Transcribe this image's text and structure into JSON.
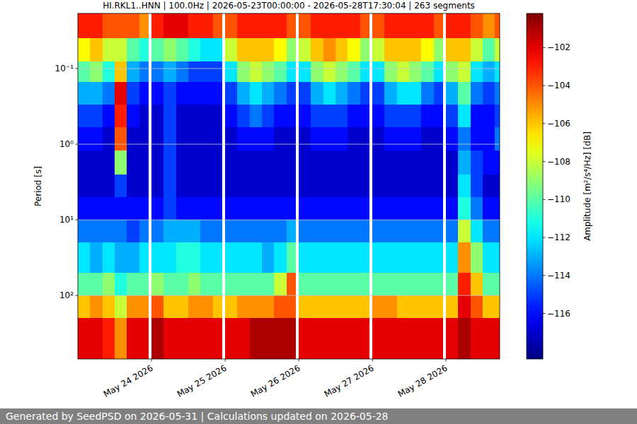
{
  "chart_data": {
    "type": "heatmap",
    "title": "HI.RKL1..HNN | 100.0Hz | 2026-05-23T00:00:00 - 2026-05-28T17:30:04 | 263 segments",
    "ylabel": "Period [s]",
    "footer": "Generated by SeedPSD on 2026-05-31 | Calculations updated on 2026-05-28",
    "log": "y",
    "grid": true,
    "xlim": [
      "2026-05-23T00:00:00",
      "2026-05-28T17:30:04"
    ],
    "xticks": [
      {
        "value": "2026-05-24T00:00:00",
        "label": "May 24 2026"
      },
      {
        "value": "2026-05-25T00:00:00",
        "label": "May 25 2026"
      },
      {
        "value": "2026-05-26T00:00:00",
        "label": "May 26 2026"
      },
      {
        "value": "2026-05-27T00:00:00",
        "label": "May 27 2026"
      },
      {
        "value": "2026-05-28T00:00:00",
        "label": "May 28 2026"
      }
    ],
    "ylim": [
      0.0187,
      690
    ],
    "yticks": [
      {
        "value": 0.1,
        "label": "10⁻¹"
      },
      {
        "value": 1,
        "label": "10⁰"
      },
      {
        "value": 10,
        "label": "10¹"
      },
      {
        "value": 100,
        "label": "10²"
      }
    ],
    "y": [
      0.0187,
      0.04,
      0.08,
      0.15,
      0.3,
      0.6,
      1.2,
      2.5,
      5,
      10,
      20,
      50,
      100,
      200,
      690
    ],
    "x": [
      "2026-05-23T00:00:00",
      "2026-05-23T04:00:00",
      "2026-05-23T08:00:00",
      "2026-05-23T12:00:00",
      "2026-05-23T16:00:00",
      "2026-05-23T20:00:00",
      "2026-05-23T23:00:00",
      "2026-05-24T00:00:00",
      "2026-05-24T04:00:00",
      "2026-05-24T08:00:00",
      "2026-05-24T12:00:00",
      "2026-05-24T16:00:00",
      "2026-05-24T20:00:00",
      "2026-05-24T23:00:00",
      "2026-05-25T00:00:00",
      "2026-05-25T04:00:00",
      "2026-05-25T08:00:00",
      "2026-05-25T12:00:00",
      "2026-05-25T16:00:00",
      "2026-05-25T20:00:00",
      "2026-05-25T23:00:00",
      "2026-05-26T00:00:00",
      "2026-05-26T04:00:00",
      "2026-05-26T08:00:00",
      "2026-05-26T12:00:00",
      "2026-05-26T16:00:00",
      "2026-05-26T20:00:00",
      "2026-05-26T23:00:00",
      "2026-05-27T00:00:00",
      "2026-05-27T04:00:00",
      "2026-05-27T08:00:00",
      "2026-05-27T12:00:00",
      "2026-05-27T16:00:00",
      "2026-05-27T20:00:00",
      "2026-05-27T23:00:00",
      "2026-05-28T00:00:00",
      "2026-05-28T04:00:00",
      "2026-05-28T08:00:00",
      "2026-05-28T12:00:00",
      "2026-05-28T16:00:00"
    ],
    "values": [
      [
        -103,
        -107,
        -110,
        -113,
        -115,
        -116,
        -117,
        -117,
        -116,
        -114,
        -112,
        -110,
        -106,
        -102
      ],
      [
        -103,
        -106,
        -109,
        -113,
        -115,
        -116,
        -117,
        -117,
        -116,
        -114,
        -113,
        -110,
        -105,
        -102
      ],
      [
        -104,
        -108,
        -111,
        -114,
        -116,
        -117,
        -117,
        -117,
        -116,
        -114,
        -112,
        -109,
        -106,
        -103
      ],
      [
        -104,
        -108,
        -106,
        -102,
        -103,
        -104,
        -109,
        -115,
        -116,
        -114,
        -113,
        -111,
        -108,
        -105
      ],
      [
        -104,
        -110,
        -113,
        -115,
        -116,
        -117,
        -117,
        -117,
        -116,
        -115,
        -113,
        -110,
        -105,
        -102
      ],
      [
        -105,
        -111,
        -114,
        -116,
        -117,
        -117,
        -117,
        -117,
        -116,
        -114,
        -112,
        -110,
        -105,
        -102
      ],
      null,
      [
        -103,
        -110,
        -114,
        -116,
        -117,
        -117,
        -117,
        -117,
        -116,
        -114,
        -112,
        -109,
        -104,
        -101
      ],
      [
        -102,
        -109,
        -113,
        -115,
        -115,
        -115,
        -115,
        -115,
        -115,
        -113,
        -112,
        -110,
        -106,
        -102
      ],
      [
        -102,
        -110,
        -114,
        -116,
        -117,
        -117,
        -117,
        -117,
        -116,
        -113,
        -111,
        -110,
        -106,
        -102
      ],
      [
        -103,
        -111,
        -115,
        -116,
        -117,
        -117,
        -117,
        -117,
        -116,
        -113,
        -111,
        -109,
        -105,
        -102
      ],
      [
        -103,
        -112,
        -115,
        -116,
        -117,
        -117,
        -117,
        -117,
        -116,
        -114,
        -112,
        -110,
        -105,
        -102
      ],
      [
        -104,
        -112,
        -115,
        -116,
        -117,
        -117,
        -117,
        -117,
        -116,
        -114,
        -112,
        -110,
        -106,
        -102
      ],
      null,
      [
        -104,
        -108,
        -112,
        -115,
        -116,
        -117,
        -117,
        -117,
        -116,
        -114,
        -112,
        -110,
        -106,
        -102
      ],
      [
        -103,
        -106,
        -109,
        -113,
        -115,
        -116,
        -117,
        -117,
        -116,
        -114,
        -112,
        -110,
        -105,
        -102
      ],
      [
        -103,
        -106,
        -108,
        -112,
        -114,
        -116,
        -117,
        -117,
        -116,
        -114,
        -112,
        -110,
        -105,
        -101
      ],
      [
        -103,
        -106,
        -109,
        -113,
        -115,
        -116,
        -117,
        -117,
        -116,
        -114,
        -113,
        -110,
        -105,
        -101
      ],
      [
        -103,
        -107,
        -110,
        -114,
        -116,
        -117,
        -117,
        -117,
        -116,
        -114,
        -112,
        -108,
        -104,
        -101
      ],
      [
        -104,
        -109,
        -112,
        -115,
        -116,
        -117,
        -117,
        -117,
        -116,
        -113,
        -110,
        -104,
        -104,
        -101
      ],
      null,
      [
        -104,
        -108,
        -112,
        -115,
        -116,
        -117,
        -117,
        -117,
        -116,
        -114,
        -112,
        -110,
        -106,
        -102
      ],
      [
        -103,
        -106,
        -109,
        -113,
        -115,
        -116,
        -117,
        -117,
        -116,
        -114,
        -112,
        -110,
        -106,
        -102
      ],
      [
        -103,
        -105,
        -108,
        -112,
        -115,
        -116,
        -117,
        -117,
        -116,
        -114,
        -112,
        -110,
        -106,
        -102
      ],
      [
        -103,
        -106,
        -109,
        -113,
        -115,
        -116,
        -117,
        -117,
        -116,
        -114,
        -112,
        -110,
        -106,
        -102
      ],
      [
        -103,
        -107,
        -110,
        -114,
        -116,
        -117,
        -117,
        -117,
        -116,
        -114,
        -112,
        -110,
        -106,
        -102
      ],
      [
        -104,
        -109,
        -112,
        -115,
        -116,
        -117,
        -117,
        -117,
        -116,
        -114,
        -112,
        -110,
        -106,
        -102
      ],
      null,
      [
        -104,
        -108,
        -112,
        -115,
        -116,
        -117,
        -117,
        -117,
        -116,
        -114,
        -112,
        -110,
        -105,
        -102
      ],
      [
        -103,
        -106,
        -109,
        -113,
        -115,
        -116,
        -117,
        -117,
        -116,
        -114,
        -112,
        -110,
        -105,
        -102
      ],
      [
        -103,
        -106,
        -108,
        -112,
        -115,
        -116,
        -117,
        -117,
        -116,
        -114,
        -112,
        -110,
        -106,
        -102
      ],
      [
        -103,
        -106,
        -109,
        -112,
        -115,
        -116,
        -117,
        -117,
        -116,
        -114,
        -112,
        -110,
        -106,
        -102
      ],
      [
        -103,
        -107,
        -110,
        -114,
        -116,
        -117,
        -117,
        -117,
        -116,
        -114,
        -112,
        -110,
        -106,
        -102
      ],
      [
        -104,
        -109,
        -112,
        -115,
        -116,
        -117,
        -117,
        -117,
        -116,
        -114,
        -112,
        -110,
        -106,
        -102
      ],
      null,
      [
        -103,
        -106,
        -109,
        -113,
        -115,
        -116,
        -117,
        -117,
        -116,
        -114,
        -112,
        -110,
        -106,
        -102
      ],
      [
        -103,
        -106,
        -108,
        -110,
        -112,
        -114,
        -113,
        -112,
        -111,
        -108,
        -105,
        -103,
        -102,
        -101
      ],
      [
        -104,
        -108,
        -112,
        -114,
        -116,
        -116,
        -115,
        -115,
        -114,
        -112,
        -109,
        -106,
        -104,
        -102
      ],
      [
        -105,
        -110,
        -113,
        -115,
        -116,
        -116,
        -116,
        -117,
        -116,
        -114,
        -112,
        -110,
        -106,
        -102
      ],
      [
        -104,
        -108,
        -112,
        -114,
        -115,
        -114,
        -116,
        -117,
        -116,
        -114,
        -112,
        -110,
        -106,
        -102
      ]
    ],
    "colorbar": {
      "label": "Amplitude [m²/s⁴/Hz] [dB]",
      "lim": [
        -118.4,
        -100.2
      ],
      "ticks": [
        {
          "value": -102,
          "label": "−102"
        },
        {
          "value": -104,
          "label": "−104"
        },
        {
          "value": -106,
          "label": "−106"
        },
        {
          "value": -108,
          "label": "−108"
        },
        {
          "value": -110,
          "label": "−110"
        },
        {
          "value": -112,
          "label": "−112"
        },
        {
          "value": -114,
          "label": "−114"
        },
        {
          "value": -116,
          "label": "−116"
        }
      ]
    }
  }
}
